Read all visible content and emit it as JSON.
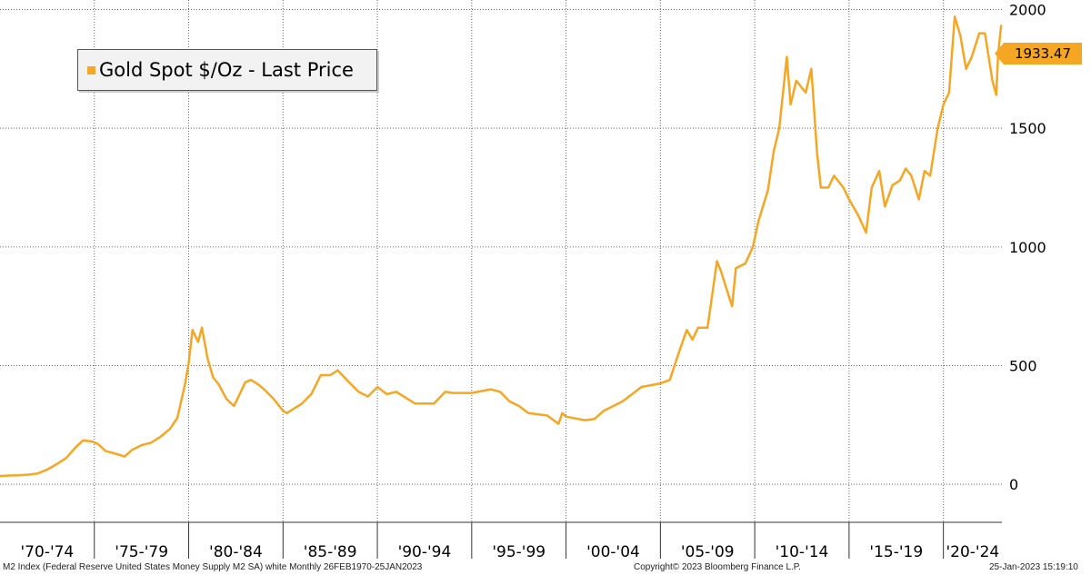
{
  "chart_data": {
    "type": "line",
    "legend": {
      "label": "Gold Spot $/Oz - Last Price",
      "placement": "top-left",
      "color": "#f5a623"
    },
    "last_value_label": "1933.47",
    "ylim": [
      -160,
      2040
    ],
    "yticks": [
      {
        "value": 0,
        "label": "0"
      },
      {
        "value": 500,
        "label": "500"
      },
      {
        "value": 1000,
        "label": "1000"
      },
      {
        "value": 1500,
        "label": "1500"
      },
      {
        "value": 2000,
        "label": "2000"
      }
    ],
    "xlim": [
      1970.0,
      2023.1
    ],
    "x_periods": [
      {
        "label": "'70-'74",
        "start": 1970,
        "end": 1975
      },
      {
        "label": "'75-'79",
        "start": 1975,
        "end": 1980
      },
      {
        "label": "'80-'84",
        "start": 1980,
        "end": 1985
      },
      {
        "label": "'85-'89",
        "start": 1985,
        "end": 1990
      },
      {
        "label": "'90-'94",
        "start": 1990,
        "end": 1995
      },
      {
        "label": "'95-'99",
        "start": 1995,
        "end": 2000
      },
      {
        "label": "'00-'04",
        "start": 2000,
        "end": 2005
      },
      {
        "label": "'05-'09",
        "start": 2005,
        "end": 2010
      },
      {
        "label": "'10-'14",
        "start": 2010,
        "end": 2015
      },
      {
        "label": "'15-'19",
        "start": 2015,
        "end": 2020
      },
      {
        "label": "'20-'24",
        "start": 2020,
        "end": 2025
      }
    ],
    "grid": true,
    "series": [
      {
        "name": "Gold Spot $/Oz - Last Price",
        "color": "#f5a623",
        "x": [
          1970.0,
          1970.5,
          1971.0,
          1971.5,
          1972.0,
          1972.5,
          1973.0,
          1973.5,
          1974.0,
          1974.4,
          1974.9,
          1975.2,
          1975.6,
          1976.0,
          1976.6,
          1977.0,
          1977.5,
          1978.0,
          1978.5,
          1979.0,
          1979.4,
          1979.8,
          1980.0,
          1980.2,
          1980.5,
          1980.7,
          1981.0,
          1981.3,
          1981.6,
          1982.0,
          1982.4,
          1982.7,
          1983.0,
          1983.3,
          1983.7,
          1984.0,
          1984.5,
          1985.0,
          1985.2,
          1985.6,
          1986.0,
          1986.5,
          1987.0,
          1987.5,
          1987.9,
          1988.5,
          1989.0,
          1989.5,
          1990.0,
          1990.5,
          1991.0,
          1992.0,
          1993.0,
          1993.6,
          1994.0,
          1995.0,
          1996.0,
          1996.5,
          1997.0,
          1997.5,
          1998.0,
          1999.0,
          1999.6,
          1999.8,
          2000.0,
          2001.0,
          2001.5,
          2002.0,
          2003.0,
          2004.0,
          2005.0,
          2005.5,
          2006.0,
          2006.4,
          2006.7,
          2007.0,
          2007.5,
          2008.0,
          2008.2,
          2008.8,
          2009.0,
          2009.5,
          2009.9,
          2010.2,
          2010.7,
          2011.0,
          2011.3,
          2011.7,
          2011.9,
          2012.2,
          2012.7,
          2013.0,
          2013.3,
          2013.5,
          2013.9,
          2014.2,
          2014.7,
          2015.0,
          2015.5,
          2015.9,
          2016.2,
          2016.6,
          2016.9,
          2017.3,
          2017.7,
          2018.0,
          2018.3,
          2018.7,
          2019.0,
          2019.3,
          2019.7,
          2020.0,
          2020.3,
          2020.6,
          2020.9,
          2021.2,
          2021.5,
          2021.9,
          2022.2,
          2022.6,
          2022.8,
          2022.9,
          2023.06
        ],
        "y": [
          35,
          37,
          38,
          41,
          46,
          62,
          85,
          110,
          155,
          185,
          180,
          170,
          140,
          132,
          117,
          145,
          165,
          175,
          200,
          233,
          280,
          420,
          510,
          650,
          600,
          660,
          530,
          450,
          420,
          360,
          330,
          380,
          430,
          440,
          420,
          400,
          360,
          310,
          300,
          320,
          340,
          380,
          460,
          460,
          480,
          430,
          390,
          370,
          410,
          380,
          390,
          340,
          340,
          390,
          385,
          385,
          400,
          390,
          350,
          330,
          300,
          290,
          255,
          300,
          285,
          270,
          275,
          310,
          350,
          410,
          425,
          440,
          560,
          650,
          610,
          660,
          660,
          940,
          900,
          750,
          910,
          930,
          1000,
          1110,
          1240,
          1400,
          1500,
          1800,
          1600,
          1700,
          1650,
          1750,
          1400,
          1250,
          1250,
          1300,
          1250,
          1200,
          1130,
          1060,
          1250,
          1320,
          1170,
          1260,
          1280,
          1330,
          1300,
          1200,
          1320,
          1300,
          1500,
          1600,
          1650,
          1970,
          1890,
          1750,
          1800,
          1900,
          1900,
          1700,
          1640,
          1810,
          1933.47
        ]
      }
    ]
  },
  "footer": {
    "source": "M2 Index (Federal Reserve United States Money Supply M2 SA) white  Monthly 26FEB1970-25JAN2023",
    "copyright": "Copyright© 2023 Bloomberg Finance L.P.",
    "timestamp": "25-Jan-2023 15:19:10"
  }
}
